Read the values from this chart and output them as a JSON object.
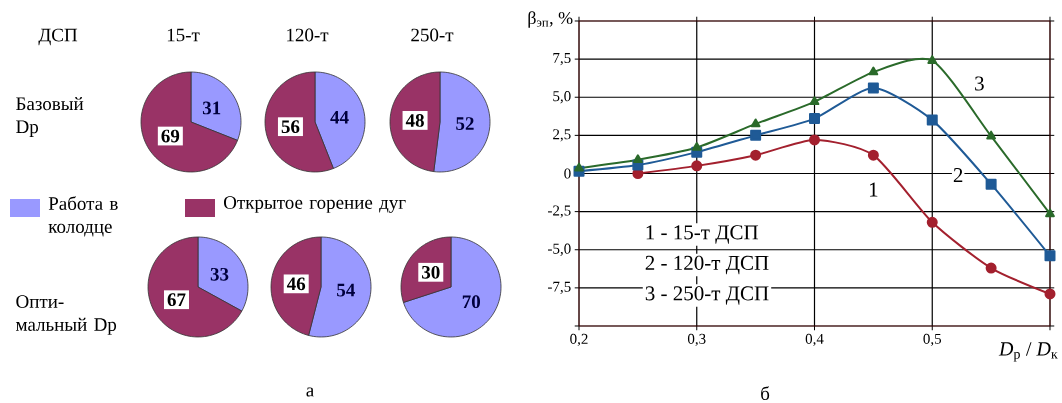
{
  "chart_data": [
    {
      "type": "pie",
      "title": "15-т",
      "categories": [
        "Работа в колодце",
        "Открытое горение дуг"
      ],
      "values": [
        31,
        69
      ],
      "colors": [
        "#9999ff",
        "#993366"
      ],
      "data_labels": true,
      "legend": "bottom",
      "annotations": [
        "ДСП",
        "Базовый Dp"
      ]
    },
    {
      "type": "pie",
      "title": "120-т",
      "categories": [
        null,
        null
      ],
      "values": [
        44,
        56
      ],
      "colors": [
        "#9999ff",
        "#993366"
      ],
      "data_labels": true
    },
    {
      "type": "pie",
      "title": "250-т",
      "categories": [
        null,
        null
      ],
      "values": [
        52,
        48
      ],
      "colors": [
        "#9999ff",
        "#993366"
      ],
      "data_labels": true
    },
    {
      "type": "pie",
      "categories": [
        null,
        null
      ],
      "values": [
        33,
        67
      ],
      "colors": [
        "#9999ff",
        "#993366"
      ],
      "data_labels": true,
      "annotations": [
        "Опти- мальный Dp"
      ]
    },
    {
      "type": "pie",
      "categories": [
        null,
        null
      ],
      "values": [
        54,
        46
      ],
      "colors": [
        "#9999ff",
        "#993366"
      ],
      "data_labels": true,
      "annotations": [
        "а"
      ]
    },
    {
      "type": "pie",
      "categories": [
        null,
        null
      ],
      "values": [
        70,
        30
      ],
      "colors": [
        "#9999ff",
        "#993366"
      ],
      "data_labels": true
    },
    {
      "type": "line",
      "ylabel": "β$_{эп}$, %",
      "xlabel": "*D*$_{р}$ / *D*$_{к}$",
      "xlim": [
        0.2,
        0.6
      ],
      "ylim": [
        -10,
        10
      ],
      "grid": true,
      "xticks": [
        {
          "value": 0.2,
          "label": "0,2"
        },
        {
          "value": 0.3,
          "label": "0,3"
        },
        {
          "value": 0.4,
          "label": "0,4"
        },
        {
          "value": 0.5,
          "label": "0,5"
        },
        {
          "value": 0.6,
          "label": null
        }
      ],
      "yticks": [
        {
          "value": -10,
          "label": null
        },
        {
          "value": -7.5,
          "label": "-7,5"
        },
        {
          "value": -5,
          "label": "-5,0"
        },
        {
          "value": -2.5,
          "label": "-2,5"
        },
        0,
        {
          "value": 2.5,
          "label": "2,5"
        },
        {
          "value": 5,
          "label": "5,0"
        },
        {
          "value": 7.5,
          "label": "7,5"
        },
        {
          "value": 10,
          "label": null
        }
      ],
      "series": [
        {
          "color": "#a3202e",
          "marker": "circle",
          "x": [
            0.25,
            0.3,
            0.35,
            0.4,
            0.45,
            0.5,
            0.55,
            0.6
          ],
          "values": [
            0,
            0.5,
            1.2,
            2.2,
            1.2,
            -3.2,
            -6.2,
            -7.9
          ]
        },
        {
          "color": "#1f5a96",
          "marker": "square",
          "x": [
            0.2,
            0.25,
            0.3,
            0.35,
            0.4,
            0.45,
            0.5,
            0.55,
            0.6
          ],
          "values": [
            0.15,
            0.55,
            1.4,
            2.5,
            3.6,
            5.6,
            3.5,
            -0.7,
            -5.4
          ]
        },
        {
          "color": "#2a6a2a",
          "marker": "triangle",
          "x": [
            0.2,
            0.25,
            0.3,
            0.35,
            0.4,
            0.45,
            0.5,
            0.55,
            0.6
          ],
          "values": [
            0.35,
            0.9,
            1.7,
            3.25,
            4.7,
            6.65,
            7.4,
            2.45,
            -2.65
          ]
        }
      ],
      "annotations": [
        {
          "text": "1",
          "x": 0.45,
          "y": -1.05
        },
        {
          "text": "2",
          "x": 0.522,
          "y": -0.1
        },
        {
          "text": "3",
          "x": 0.54,
          "y": 5.9
        },
        "1 - 15-т ДСП",
        "2 - 120-т ДСП",
        "3 - 250-т ДСП",
        "б"
      ]
    }
  ]
}
